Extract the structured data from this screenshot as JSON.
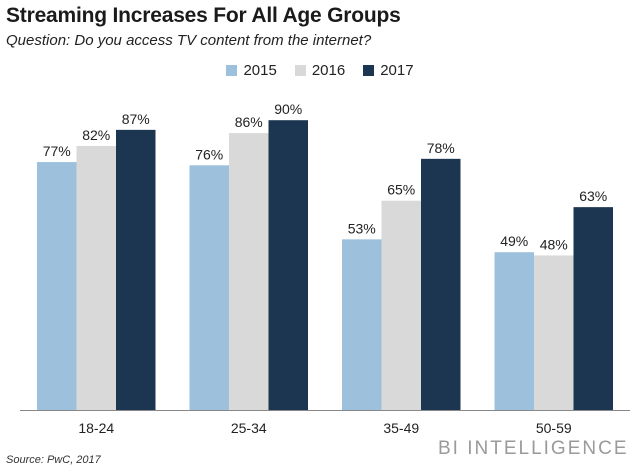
{
  "header": {
    "title": "Streaming Increases For All Age Groups",
    "subtitle": "Question: Do you access TV content from the internet?"
  },
  "footer": {
    "source": "Source: PwC, 2017",
    "brand": "BI INTELLIGENCE"
  },
  "colors": {
    "2015": "#9dc1dc",
    "2016": "#d9d9d9",
    "2017": "#1c3550",
    "axis": "#888888"
  },
  "chart_data": {
    "type": "bar",
    "title": "Streaming Increases For All Age Groups",
    "subtitle": "Question: Do you access TV content from the internet?",
    "xlabel": "",
    "ylabel": "",
    "categories": [
      "18-24",
      "25-34",
      "35-49",
      "50-59"
    ],
    "series": [
      {
        "name": "2015",
        "values": [
          77,
          76,
          53,
          49
        ],
        "labels": [
          "77%",
          "76%",
          "53%",
          "49%"
        ]
      },
      {
        "name": "2016",
        "values": [
          82,
          86,
          65,
          48
        ],
        "labels": [
          "82%",
          "86%",
          "65%",
          "48%"
        ]
      },
      {
        "name": "2017",
        "values": [
          87,
          90,
          78,
          63
        ],
        "labels": [
          "87%",
          "90%",
          "78%",
          "63%"
        ]
      }
    ],
    "ylim": [
      0,
      100
    ],
    "grid": false,
    "legend": "top-center",
    "value_format": "percent"
  }
}
